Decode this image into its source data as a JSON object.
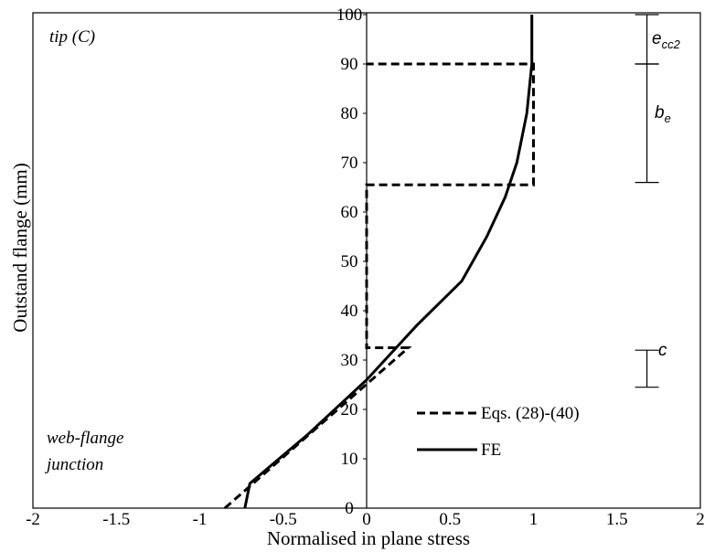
{
  "chart_data": {
    "type": "line",
    "xlabel": "Normalised in plane stress",
    "ylabel": "Outstand flange (mm)",
    "xlim": [
      -2,
      2
    ],
    "ylim": [
      0,
      100
    ],
    "x_ticks": [
      "-2",
      "-1.5",
      "-1",
      "-0.5",
      "0",
      "0.5",
      "1",
      "1.5",
      "2"
    ],
    "y_ticks": [
      "0",
      "10",
      "20",
      "30",
      "40",
      "50",
      "60",
      "70",
      "80",
      "90",
      "100"
    ],
    "grid": false,
    "legend_position": "bottom-right",
    "series": [
      {
        "name": "Eqs. (28)-(40)",
        "style": "dashed",
        "color": "#000000",
        "points": [
          [
            -0.85,
            0
          ],
          [
            0.25,
            32.5
          ],
          [
            0,
            32.5
          ],
          [
            0,
            65.5
          ],
          [
            1,
            65.5
          ],
          [
            1,
            90
          ],
          [
            0,
            90
          ]
        ]
      },
      {
        "name": "FE",
        "style": "solid",
        "color": "#000000",
        "points": [
          [
            -0.73,
            0
          ],
          [
            -0.7,
            5
          ],
          [
            -0.35,
            15
          ],
          [
            0,
            26
          ],
          [
            0.3,
            37
          ],
          [
            0.57,
            46
          ],
          [
            0.72,
            55
          ],
          [
            0.83,
            63
          ],
          [
            0.9,
            70
          ],
          [
            0.96,
            80
          ],
          [
            0.99,
            90
          ],
          [
            0.99,
            100
          ]
        ]
      }
    ],
    "annotations": {
      "tip": "tip (C)",
      "junction_line1": "web-flange",
      "junction_line2": "junction",
      "ecc2_main": "e",
      "ecc2_sub": "cc2",
      "be_main": "b",
      "be_sub": "e",
      "c_label": "c"
    },
    "dimension_markers": [
      {
        "label": "e_cc2",
        "x": 1.68,
        "y_from": 90,
        "y_to": 100
      },
      {
        "label": "b_e",
        "x": 1.68,
        "y_from": 66,
        "y_to": 90
      },
      {
        "label": "c",
        "x": 1.68,
        "y_from": 24.5,
        "y_to": 32
      }
    ]
  }
}
